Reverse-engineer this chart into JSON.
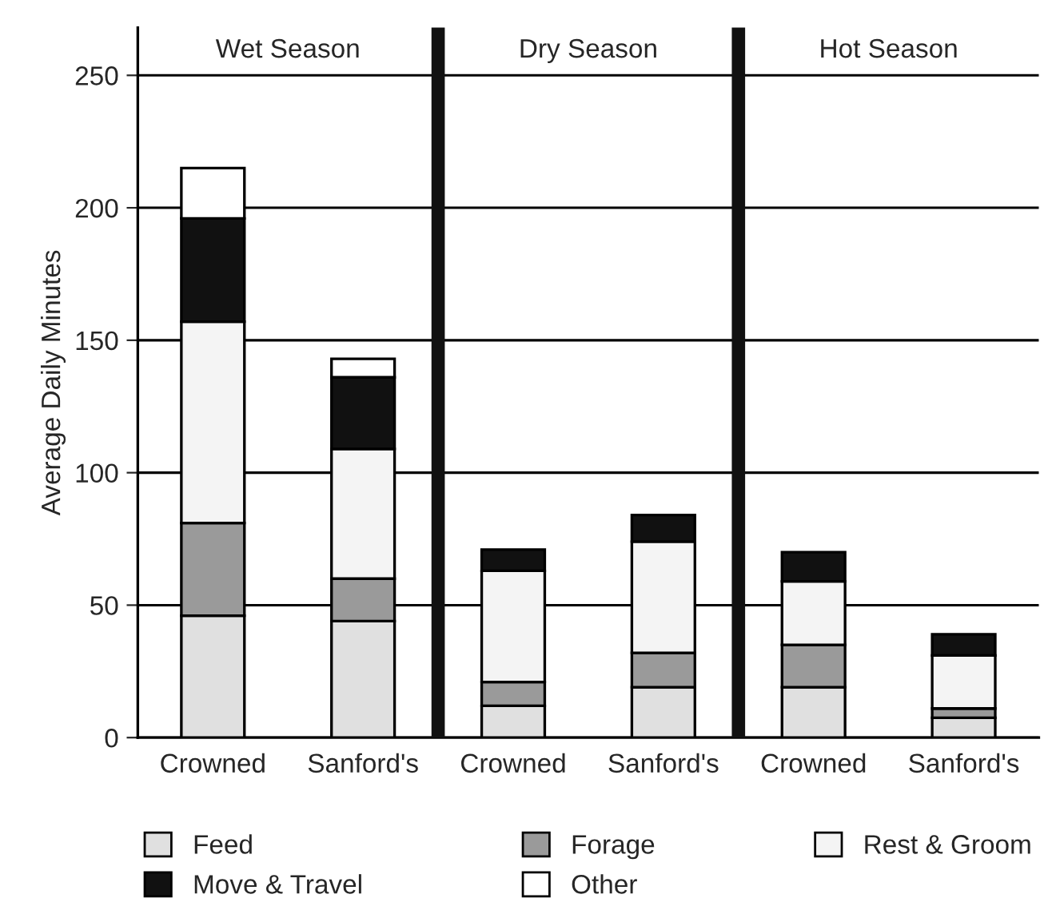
{
  "chart_data": {
    "type": "bar",
    "stacked": true,
    "ylabel": "Average Daily Minutes",
    "categories": [
      "Crowned",
      "Sanford's",
      "Crowned",
      "Sanford's",
      "Crowned",
      "Sanford's"
    ],
    "series": [
      {
        "name": "Feed",
        "color": "#e0e0e0",
        "values": [
          46,
          44,
          12,
          19,
          19,
          7.5
        ]
      },
      {
        "name": "Forage",
        "color": "#9a9a9a",
        "values": [
          35,
          16,
          9,
          13,
          16,
          3.5
        ]
      },
      {
        "name": "Rest & Groom",
        "color": "#f4f4f4",
        "values": [
          76,
          49,
          42,
          42,
          24,
          20
        ]
      },
      {
        "name": "Move & Travel",
        "color": "#111111",
        "values": [
          39,
          27,
          8,
          10,
          11,
          8
        ]
      },
      {
        "name": "Other",
        "color": "#ffffff",
        "values": [
          19,
          7,
          null,
          null,
          null,
          null
        ]
      }
    ],
    "annotations": [
      "Wet Season",
      "Dry Season",
      "Hot Season"
    ],
    "ylim": [
      0,
      268
    ],
    "yticks": [
      0,
      50,
      100,
      150,
      200,
      250
    ],
    "grid": "y",
    "legend": "bottom"
  }
}
